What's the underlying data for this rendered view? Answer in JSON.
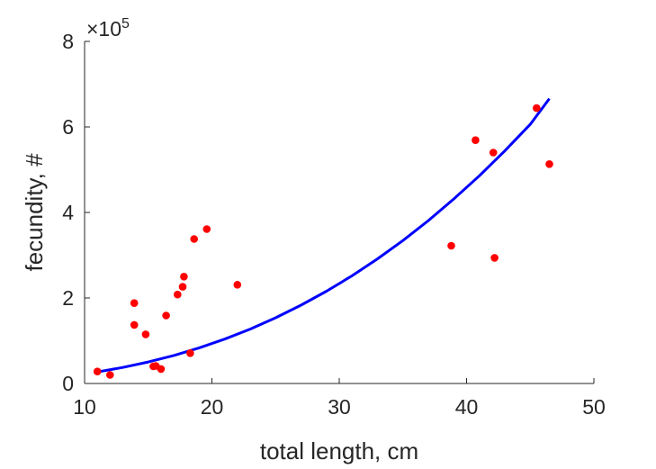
{
  "chart_data": {
    "type": "scatter",
    "xlabel": "total length, cm",
    "ylabel": "fecundity, #",
    "xlim": [
      10,
      50
    ],
    "ylim": [
      0,
      800000
    ],
    "x_ticks": [
      "10",
      "20",
      "30",
      "40",
      "50"
    ],
    "y_ticks": [
      "0",
      "2",
      "4",
      "6",
      "8"
    ],
    "y_multiplier": {
      "base": "×10",
      "exponent": "5"
    },
    "grid": false,
    "series": [
      {
        "kind": "scatter",
        "color": "#ff0000",
        "points": [
          {
            "x": 11.0,
            "y": 28000
          },
          {
            "x": 12.0,
            "y": 20000
          },
          {
            "x": 13.9,
            "y": 188000
          },
          {
            "x": 13.9,
            "y": 137000
          },
          {
            "x": 14.8,
            "y": 115000
          },
          {
            "x": 15.4,
            "y": 40000
          },
          {
            "x": 15.6,
            "y": 41000
          },
          {
            "x": 16.0,
            "y": 34000
          },
          {
            "x": 16.4,
            "y": 159000
          },
          {
            "x": 17.3,
            "y": 208000
          },
          {
            "x": 17.7,
            "y": 226000
          },
          {
            "x": 17.8,
            "y": 250000
          },
          {
            "x": 18.3,
            "y": 71000
          },
          {
            "x": 18.6,
            "y": 338000
          },
          {
            "x": 19.6,
            "y": 361000
          },
          {
            "x": 22.0,
            "y": 231000
          },
          {
            "x": 38.8,
            "y": 322000
          },
          {
            "x": 40.7,
            "y": 569000
          },
          {
            "x": 42.1,
            "y": 540000
          },
          {
            "x": 42.2,
            "y": 294000
          },
          {
            "x": 45.5,
            "y": 644000
          },
          {
            "x": 46.5,
            "y": 513000
          }
        ]
      },
      {
        "kind": "line",
        "color": "#0000ff",
        "x": [
          11,
          13,
          15,
          17,
          19,
          21,
          23,
          25,
          27,
          29,
          31,
          33,
          35,
          37,
          39,
          41,
          43,
          45,
          46.5
        ],
        "values": [
          27000,
          37500,
          50300,
          65500,
          83300,
          103800,
          127200,
          153600,
          183100,
          215800,
          251800,
          291300,
          334300,
          381000,
          431500,
          485700,
          543900,
          606100,
          666000
        ]
      }
    ]
  }
}
